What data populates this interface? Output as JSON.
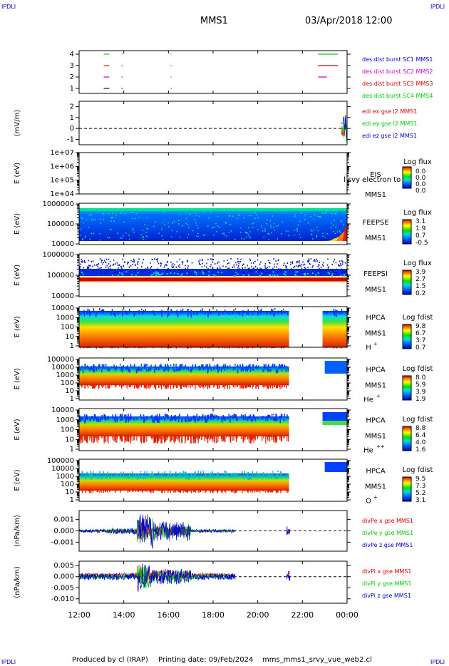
{
  "header": {
    "corner_left_top": "IPDLI",
    "corner_right_top": "IPDLI",
    "corner_left_bottom": "IPDLI",
    "corner_right_bottom": "IPDLI",
    "mission": "MMS1",
    "datetime": "03/Apr/2018 12:00"
  },
  "footer": {
    "produced_by": "Produced by cl (IRAP)",
    "printing_date": "Printing date: 09/Feb/2024",
    "filename": "mms_mms1_srvy_vue_web2.cl"
  },
  "time_axis": {
    "ticks": [
      "12:00",
      "14:00",
      "16:00",
      "18:00",
      "20:00",
      "22:00",
      "00:00"
    ],
    "hours": [
      12,
      14,
      16,
      18,
      20,
      22,
      24
    ]
  },
  "colors": {
    "blue": "#0000cc",
    "magenta": "#cc00cc",
    "red": "#dd0000",
    "green": "#00cc00"
  },
  "panels": {
    "burst": {
      "ticks": [
        "1",
        "2",
        "3",
        "4"
      ],
      "legend": [
        "des dist burst SC1 MMS1",
        "des dist burst SC2 MMS2",
        "des dist burst SC3 MMS3",
        "des dist burst SC4 MMS4"
      ]
    },
    "edi": {
      "ylabel": "(mV/m)",
      "ticks": [
        "-1",
        "0",
        "1",
        "2"
      ],
      "legend": [
        "edi ex gse l2 MMS1",
        "edi ey gse l2 MMS1",
        "edi ez gse l2 MMS1"
      ]
    },
    "eis": {
      "ylabel": "E (eV)",
      "ticks": [
        "1e+04",
        "1e+05",
        "1e+06",
        "1e+07"
      ],
      "name": "EIS",
      "name_extra": "l svy electron to",
      "mms": "MMS1",
      "cbar_title": "Log flux",
      "cbar_ticks": [
        "0.0",
        "0.0",
        "0.0",
        "0.0"
      ]
    },
    "feepse": {
      "ylabel": "E (eV)",
      "ticks": [
        "10000",
        "100000",
        "1000000"
      ],
      "name": "FEEPSE",
      "mms": "MMS1",
      "cbar_title": "Log flux",
      "cbar_ticks": [
        "3.1",
        "1.9",
        "0.7",
        "-0.5"
      ]
    },
    "feepsi": {
      "ylabel": "E (eV)",
      "ticks": [
        "10000",
        "100000",
        "1000000"
      ],
      "name": "FEEPSI",
      "mms": "MMS1",
      "cbar_title": "Log flux",
      "cbar_ticks": [
        "3.9",
        "2.7",
        "1.5",
        "0.2"
      ]
    },
    "hpca_h": {
      "ylabel": "E (eV)",
      "ticks": [
        "1",
        "10",
        "100",
        "1000",
        "10000"
      ],
      "name": "HPCA",
      "mms": "MMS1",
      "species": "H",
      "charge": "+",
      "cbar_title": "Log fdist",
      "cbar_ticks": [
        "9.8",
        "6.7",
        "3.7",
        "0.7"
      ]
    },
    "hpca_he": {
      "ylabel": "E (eV)",
      "ticks": [
        "1",
        "10",
        "100",
        "1000",
        "10000",
        "100000"
      ],
      "name": "HPCA",
      "mms": "MMS1",
      "species": "He",
      "charge": "+",
      "cbar_title": "Log fdist",
      "cbar_ticks": [
        "8.0",
        "5.9",
        "3.9",
        "1.9"
      ]
    },
    "hpca_hepp": {
      "ylabel": "E (eV)",
      "ticks": [
        "1",
        "10",
        "100",
        "1000",
        "10000"
      ],
      "name": "HPCA",
      "mms": "MMS1",
      "species": "He",
      "charge": "++",
      "cbar_title": "Log fdist",
      "cbar_ticks": [
        "8.8",
        "6.4",
        "4.0",
        "1.6"
      ]
    },
    "hpca_o": {
      "ylabel": "E (eV)",
      "ticks": [
        "1",
        "10",
        "100",
        "1000",
        "10000",
        "100000"
      ],
      "name": "HPCA",
      "mms": "MMS1",
      "species": "O",
      "charge": "+",
      "cbar_title": "Log fdist",
      "cbar_ticks": [
        "9.5",
        "7.3",
        "5.2",
        "3.1"
      ]
    },
    "divpe": {
      "ylabel": "(nPa/km)",
      "ticks": [
        "-0.001",
        "0.000",
        "0.001"
      ],
      "legend": [
        "divPe x gse MMS1",
        "divPe y gse MMS1",
        "divPe z gse MMS1"
      ]
    },
    "divpi": {
      "ylabel": "(nPa/km)",
      "ticks": [
        "-0.010",
        "-0.005",
        "0.000",
        "0.005"
      ],
      "legend": [
        "divPi x gse MMS1",
        "divPi y gse MMS1",
        "divPi z gse MMS1"
      ]
    }
  },
  "chart_data": [
    {
      "type": "scatter",
      "name": "burst",
      "x_unit": "hour",
      "segments": [
        {
          "sc": 4,
          "ranges": [
            [
              13.1,
              13.35
            ],
            [
              13.9,
              13.95
            ],
            [
              16.1,
              16.12
            ],
            [
              22.7,
              23.6
            ]
          ]
        },
        {
          "sc": 3,
          "ranges": [
            [
              13.1,
              13.35
            ],
            [
              13.9,
              13.95
            ],
            [
              16.1,
              16.12
            ],
            [
              22.7,
              23.6
            ]
          ]
        },
        {
          "sc": 2,
          "ranges": [
            [
              13.1,
              13.35
            ],
            [
              13.9,
              13.95
            ],
            [
              16.1,
              16.12
            ],
            [
              22.7,
              23.1
            ]
          ]
        },
        {
          "sc": 1,
          "ranges": [
            [
              13.1,
              13.35
            ],
            [
              13.9,
              13.95
            ],
            [
              16.1,
              16.12
            ]
          ]
        }
      ]
    },
    {
      "type": "line",
      "name": "edi",
      "ylim": [
        -1.5,
        2.5
      ],
      "active_hours": [
        23.75,
        24.0
      ]
    },
    {
      "type": "heatmap",
      "name": "hpca_h",
      "coverage_hours": [
        [
          12.0,
          21.4
        ],
        [
          22.9,
          24.0
        ]
      ]
    },
    {
      "type": "heatmap",
      "name": "hpca_he",
      "coverage_hours": [
        [
          12.0,
          21.4
        ],
        [
          23.0,
          24.0
        ]
      ]
    },
    {
      "type": "heatmap",
      "name": "hpca_hepp",
      "coverage_hours": [
        [
          12.0,
          21.4
        ],
        [
          22.9,
          24.0
        ]
      ]
    },
    {
      "type": "heatmap",
      "name": "hpca_o",
      "coverage_hours": [
        [
          12.0,
          21.4
        ],
        [
          23.0,
          24.0
        ]
      ]
    },
    {
      "type": "line",
      "name": "divpe",
      "ylim": [
        -0.0018,
        0.0018
      ],
      "active_hours": [
        [
          12.0,
          19.0
        ],
        [
          21.3,
          21.45
        ]
      ]
    },
    {
      "type": "line",
      "name": "divpi",
      "ylim": [
        -0.012,
        0.007
      ],
      "active_hours": [
        [
          12.0,
          19.0
        ],
        [
          21.3,
          21.45
        ]
      ]
    }
  ]
}
